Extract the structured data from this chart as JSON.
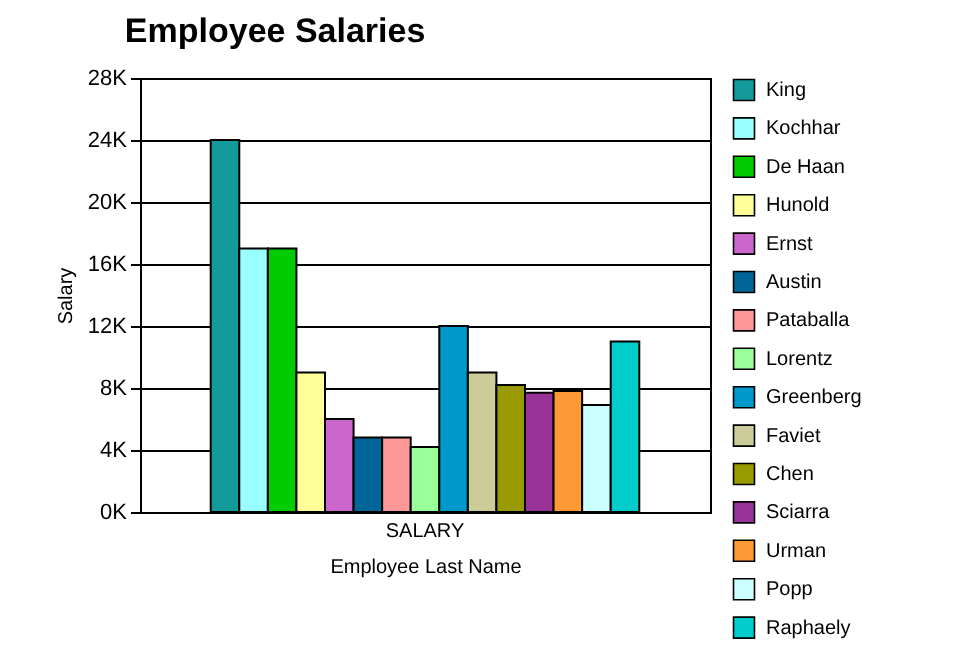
{
  "chart_data": {
    "type": "bar",
    "title": "Employee Salaries",
    "xlabel": "Employee Last Name",
    "ylabel": "Salary",
    "categories": [
      "SALARY"
    ],
    "series": [
      {
        "name": "King",
        "color": "#139a9a",
        "values": [
          24000
        ]
      },
      {
        "name": "Kochhar",
        "color": "#99ffff",
        "values": [
          17000
        ]
      },
      {
        "name": "De Haan",
        "color": "#00cc00",
        "values": [
          17000
        ]
      },
      {
        "name": "Hunold",
        "color": "#ffff99",
        "values": [
          9000
        ]
      },
      {
        "name": "Ernst",
        "color": "#cc66cc",
        "values": [
          6000
        ]
      },
      {
        "name": "Austin",
        "color": "#006699",
        "values": [
          4800
        ]
      },
      {
        "name": "Pataballa",
        "color": "#ff9999",
        "values": [
          4800
        ]
      },
      {
        "name": "Lorentz",
        "color": "#99ff99",
        "values": [
          4200
        ]
      },
      {
        "name": "Greenberg",
        "color": "#0099cc",
        "values": [
          12000
        ]
      },
      {
        "name": "Faviet",
        "color": "#cccc99",
        "values": [
          9000
        ]
      },
      {
        "name": "Chen",
        "color": "#999900",
        "values": [
          8200
        ]
      },
      {
        "name": "Sciarra",
        "color": "#993399",
        "values": [
          7700
        ]
      },
      {
        "name": "Urman",
        "color": "#ff9933",
        "values": [
          7800
        ]
      },
      {
        "name": "Popp",
        "color": "#ccffff",
        "values": [
          6900
        ]
      },
      {
        "name": "Raphaely",
        "color": "#00cccc",
        "values": [
          11000
        ]
      }
    ],
    "ylim": [
      0,
      28000
    ],
    "yticks": [
      {
        "value": 0,
        "label": "0K"
      },
      {
        "value": 4000,
        "label": "4K"
      },
      {
        "value": 8000,
        "label": "8K"
      },
      {
        "value": 12000,
        "label": "12K"
      },
      {
        "value": 16000,
        "label": "16K"
      },
      {
        "value": 20000,
        "label": "20K"
      },
      {
        "value": 24000,
        "label": "24K"
      },
      {
        "value": 28000,
        "label": "28K"
      }
    ],
    "grid": true,
    "legend": "right"
  }
}
